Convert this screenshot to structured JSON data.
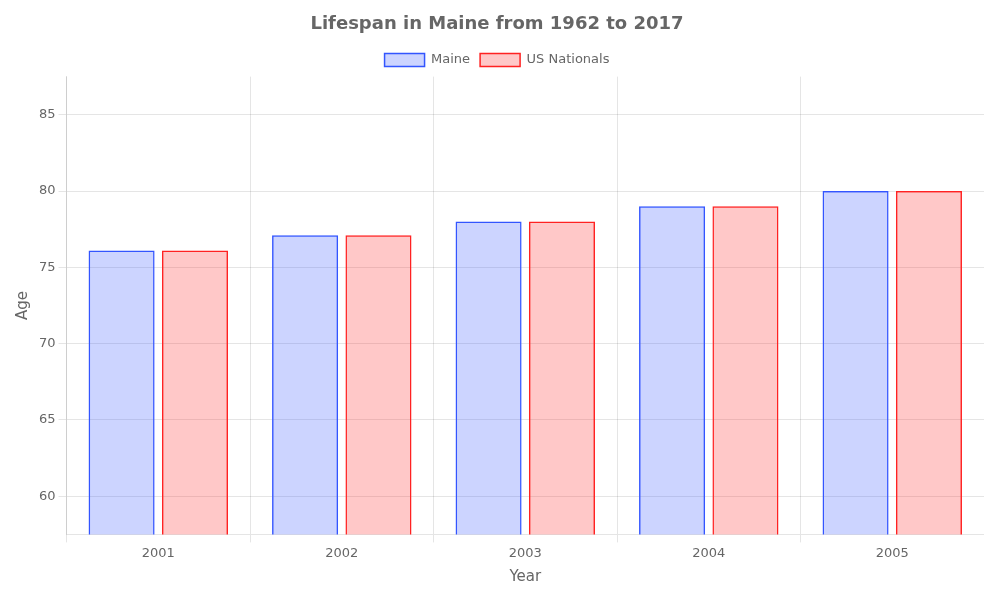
{
  "chart_data": {
    "type": "bar",
    "title": "Lifespan in Maine from 1962 to 2017",
    "x_label": "Year",
    "y_label": "Age",
    "categories": [
      "2001",
      "2002",
      "2003",
      "2004",
      "2005"
    ],
    "series": [
      {
        "name": "Maine",
        "color": "#3355ff",
        "values": [
          76.1,
          77.1,
          78.0,
          79.0,
          80.0
        ]
      },
      {
        "name": "US Nationals",
        "color": "#ff2222",
        "values": [
          76.1,
          77.1,
          78.0,
          79.0,
          80.0
        ]
      }
    ],
    "ylim": [
      57.5,
      87.5
    ],
    "yticks": [
      60,
      65,
      70,
      75,
      80,
      85
    ],
    "grid": true,
    "legend": "top"
  }
}
